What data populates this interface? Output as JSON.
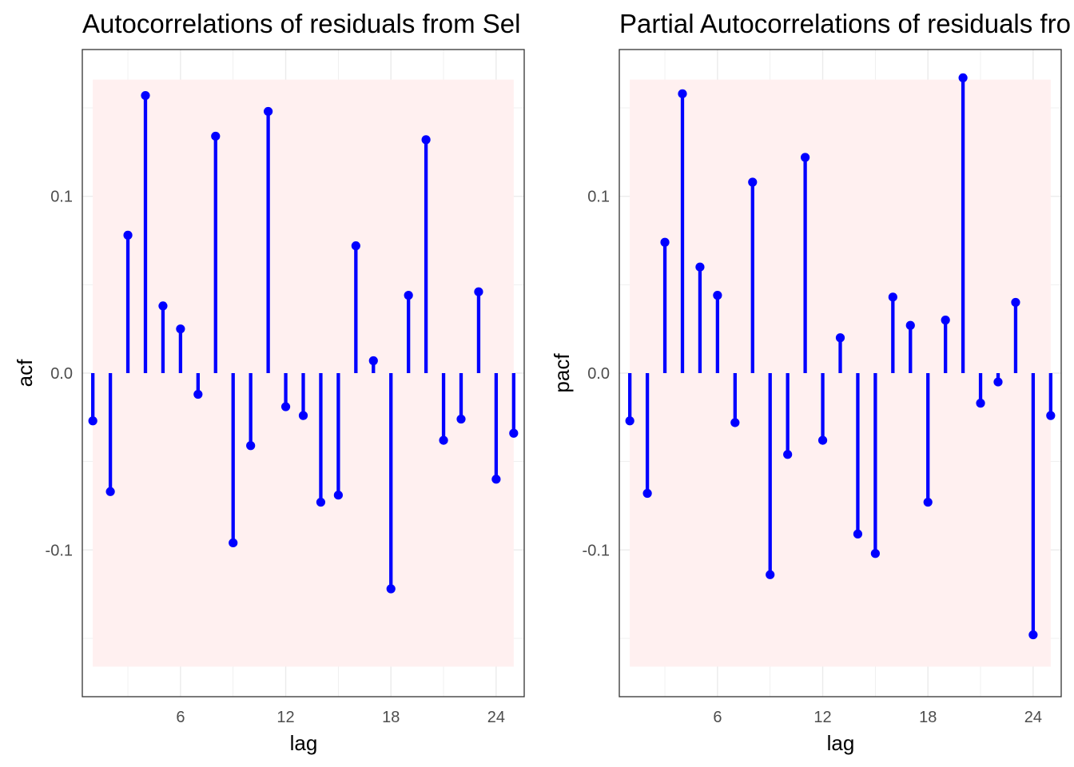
{
  "chart_data": [
    {
      "type": "lollipop",
      "title": "Autocorrelations of residuals from Sel",
      "xlabel": "lag",
      "ylabel": "acf",
      "xlim": [
        0.4,
        25.6
      ],
      "ylim": [
        -0.183,
        0.183
      ],
      "xticks": [
        6,
        12,
        18,
        24
      ],
      "yticks": [
        -0.1,
        0.0,
        0.1
      ],
      "ytick_labels": [
        "-0.1",
        "0.0",
        "0.1"
      ],
      "confidence_band": [
        -0.166,
        0.166
      ],
      "grid": true,
      "x": [
        1,
        2,
        3,
        4,
        5,
        6,
        7,
        8,
        9,
        10,
        11,
        12,
        13,
        14,
        15,
        16,
        17,
        18,
        19,
        20,
        21,
        22,
        23,
        24,
        25
      ],
      "values": [
        -0.027,
        -0.067,
        0.078,
        0.157,
        0.038,
        0.025,
        -0.012,
        0.134,
        -0.096,
        -0.041,
        0.148,
        -0.019,
        -0.024,
        -0.073,
        -0.069,
        0.072,
        0.007,
        -0.122,
        0.044,
        0.132,
        -0.038,
        -0.026,
        0.046,
        -0.06,
        -0.034
      ]
    },
    {
      "type": "lollipop",
      "title": "Partial Autocorrelations of residuals fro",
      "xlabel": "lag",
      "ylabel": "pacf",
      "xlim": [
        0.4,
        25.6
      ],
      "ylim": [
        -0.183,
        0.183
      ],
      "xticks": [
        6,
        12,
        18,
        24
      ],
      "yticks": [
        -0.1,
        0.0,
        0.1
      ],
      "ytick_labels": [
        "-0.1",
        "0.0",
        "0.1"
      ],
      "confidence_band": [
        -0.166,
        0.166
      ],
      "grid": true,
      "x": [
        1,
        2,
        3,
        4,
        5,
        6,
        7,
        8,
        9,
        10,
        11,
        12,
        13,
        14,
        15,
        16,
        17,
        18,
        19,
        20,
        21,
        22,
        23,
        24,
        25
      ],
      "values": [
        -0.027,
        -0.068,
        0.074,
        0.158,
        0.06,
        0.044,
        -0.028,
        0.108,
        -0.114,
        -0.046,
        0.122,
        -0.038,
        0.02,
        -0.091,
        -0.102,
        0.043,
        0.027,
        -0.073,
        0.03,
        0.167,
        -0.017,
        -0.005,
        0.04,
        -0.148,
        -0.024
      ]
    }
  ],
  "colors": {
    "stem": "#0000ff",
    "band": "#fff0f0",
    "grid": "#ebebeb",
    "panel_border": "#333333",
    "tick_text": "#4d4d4d"
  }
}
